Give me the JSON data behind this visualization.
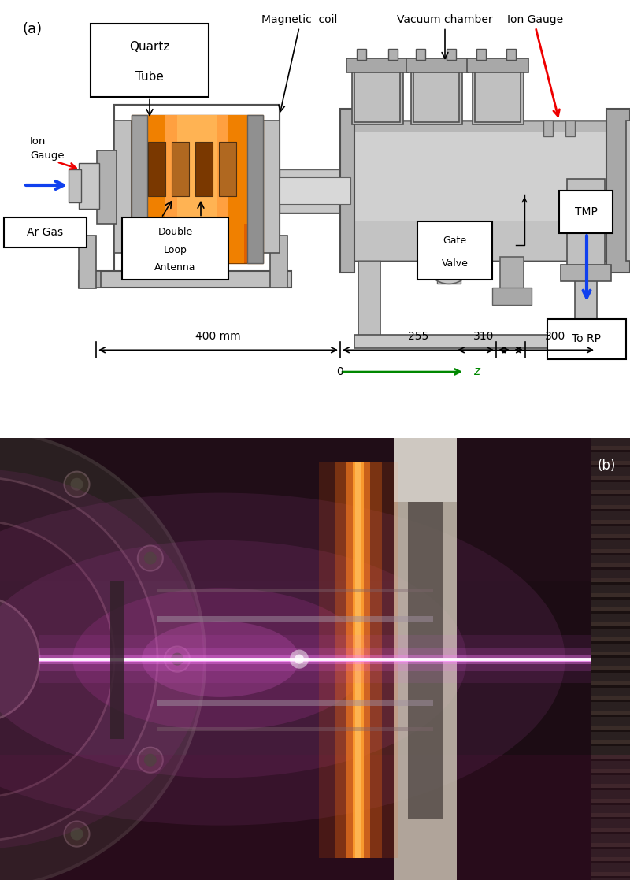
{
  "figure_width": 8.0,
  "figure_height": 11.17,
  "dpi": 100,
  "panel_a_label": "(a)",
  "panel_b_label": "(b)",
  "bg_color": "#ffffff",
  "diagram": {
    "labels": {
      "magnetic_coil": "Magnetic  coil",
      "vacuum_chamber": "Vacuum chamber",
      "ion_gauge_top": "Ion Gauge",
      "ion_gauge_left_1": "Ion",
      "ion_gauge_left_2": "Gauge",
      "quartz_tube_1": "Quartz",
      "quartz_tube_2": "Tube",
      "double_loop_1": "Double",
      "double_loop_2": "Loop",
      "double_loop_3": "Antenna",
      "ar_gas": "Ar Gas",
      "gate_valve_1": "Gate",
      "gate_valve_2": "Valve",
      "tmp": "TMP",
      "to_rp": "To RP",
      "dim_400": "400 mm",
      "dim_255": "255",
      "dim_310": "310",
      "dim_300": "300",
      "z_label": "z",
      "z_origin": "0"
    },
    "colors": {
      "arrow_blue": "#1040EE",
      "arrow_red": "#EE0000",
      "arrow_green": "#008800",
      "structure_light": "#D8D8D8",
      "structure_mid": "#B0B0B0",
      "structure_dark": "#808080",
      "structure_edge": "#505050",
      "quartz_orange_dark": "#E06000",
      "quartz_orange_mid": "#F08000",
      "quartz_orange_light": "#FFA040",
      "quartz_gray": "#909090",
      "coil_dark": "#7a3800",
      "coil_light": "#B06820",
      "text_color": "#000000",
      "white": "#ffffff",
      "black": "#000000"
    }
  }
}
